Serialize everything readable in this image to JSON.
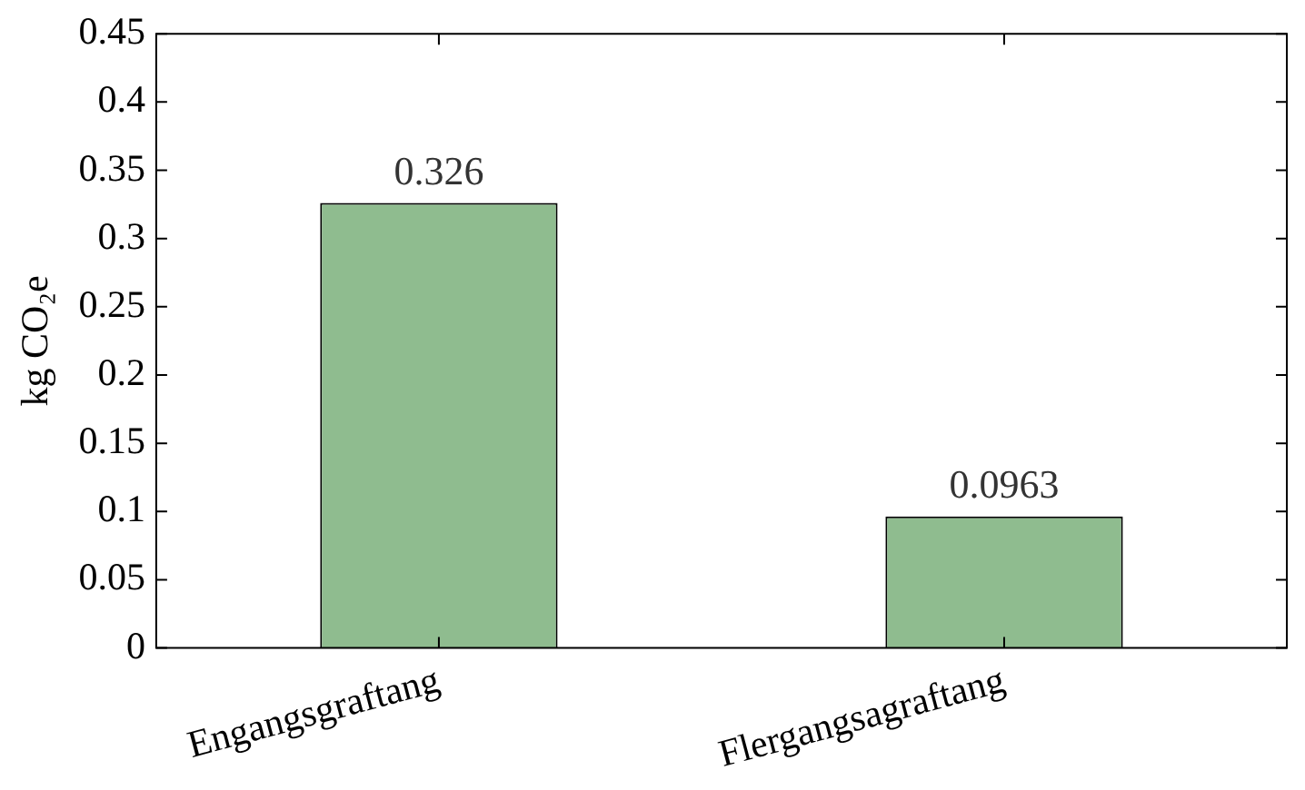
{
  "chart_data": {
    "type": "bar",
    "ylabel": "kg CO₂e",
    "categories": [
      "Engangsgraftang",
      "Flergangsagraftang"
    ],
    "values": [
      0.326,
      0.0963
    ],
    "color": "#8fbc8f",
    "ylim": [
      0,
      0.45
    ],
    "yticks": [
      0,
      0.05,
      0.1,
      0.15,
      0.2,
      0.25,
      0.3,
      0.35,
      0.4,
      0.45
    ],
    "data_labels": true,
    "grid": false,
    "legend": false
  }
}
